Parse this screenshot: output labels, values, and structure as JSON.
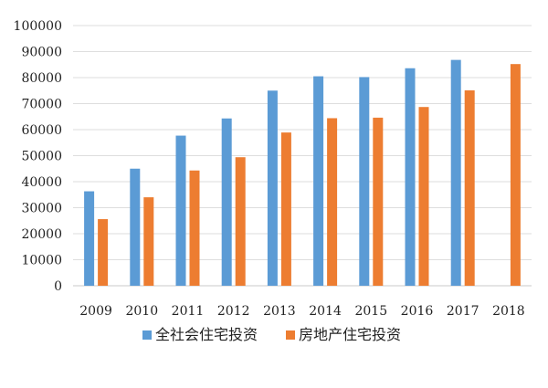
{
  "chart_data": {
    "type": "bar",
    "categories": [
      "2009",
      "2010",
      "2011",
      "2012",
      "2013",
      "2014",
      "2015",
      "2016",
      "2017",
      "2018"
    ],
    "series": [
      {
        "name": "全社会住宅投资",
        "color": "#5b9bd5",
        "values": [
          36300,
          45000,
          57700,
          64300,
          75000,
          80500,
          80200,
          83600,
          86800,
          null
        ]
      },
      {
        "name": "房地产住宅投资",
        "color": "#ed7d31",
        "values": [
          25600,
          34000,
          44300,
          49400,
          58900,
          64400,
          64600,
          68700,
          75100,
          85200
        ]
      }
    ],
    "ylim": [
      0,
      100000
    ],
    "yticks": [
      0,
      10000,
      20000,
      30000,
      40000,
      50000,
      60000,
      70000,
      80000,
      90000,
      100000
    ],
    "grid": true,
    "legend_position": "bottom"
  }
}
